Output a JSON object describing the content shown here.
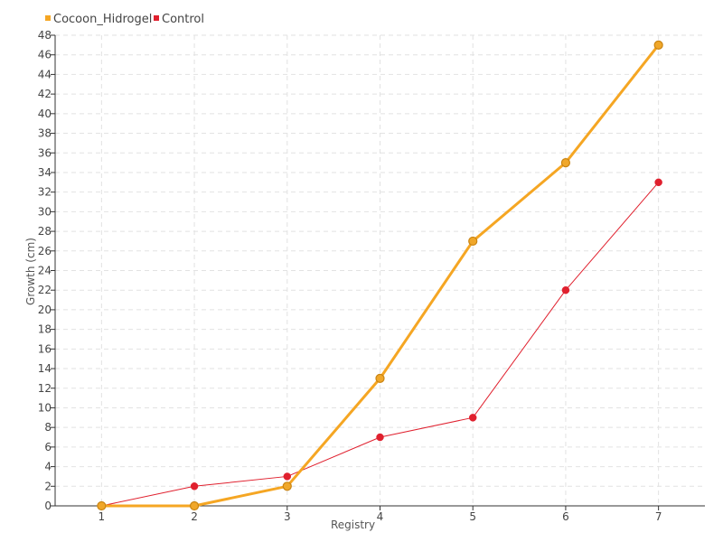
{
  "chart_data": {
    "type": "line",
    "title": "",
    "xlabel": "Registry",
    "ylabel": "Growth (cm)",
    "x": [
      1,
      2,
      3,
      4,
      5,
      6,
      7
    ],
    "xlim": [
      0.5,
      7.5
    ],
    "ylim": [
      0,
      48
    ],
    "ystep": 2,
    "grid": true,
    "legend_position": "top-left",
    "series": [
      {
        "name": "Cocoon_Hidrogel",
        "color": "#f5a623",
        "values": [
          0,
          0,
          2,
          13,
          27,
          35,
          47
        ]
      },
      {
        "name": "Control",
        "color": "#e0202e",
        "values": [
          0,
          2,
          3,
          7,
          9,
          22,
          33
        ]
      }
    ]
  }
}
